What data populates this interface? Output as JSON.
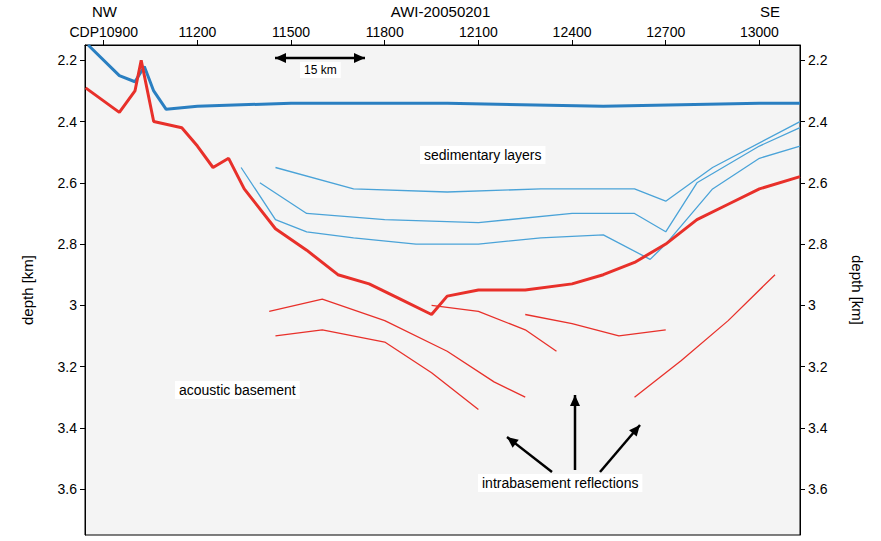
{
  "chart_data": {
    "type": "line",
    "title": "AWI-20050201",
    "left_label": "NW",
    "right_label": "SE",
    "scale_bar": "15 km",
    "ylabel": "depth [km]",
    "y2label": "depth [km]",
    "annotations": [
      "sedimentary layers",
      "acoustic basement",
      "intrabasement reflections"
    ],
    "xlim": [
      10840,
      13130
    ],
    "xticks": [
      {
        "value": 10900,
        "label": "CDP10900"
      },
      11200,
      11500,
      11800,
      12100,
      12400,
      12700,
      13000
    ],
    "ylim": [
      2.15,
      3.75
    ],
    "yticks": [
      2.2,
      2.4,
      2.6,
      2.8,
      3.0,
      3.2,
      3.4,
      3.6
    ],
    "y2lim": [
      2.15,
      3.75
    ],
    "y2ticks": [
      2.2,
      2.4,
      2.6,
      2.8,
      3.0,
      3.2,
      3.4,
      3.6
    ],
    "series": [
      {
        "color": "#2a7fc1",
        "line_style": "thick",
        "x": [
          10850,
          10950,
          11000,
          11030,
          11060,
          11100,
          11200,
          11500,
          12000,
          12500,
          13000,
          13130
        ],
        "values": [
          2.15,
          2.25,
          2.27,
          2.22,
          2.3,
          2.36,
          2.35,
          2.34,
          2.34,
          2.35,
          2.34,
          2.34
        ]
      },
      {
        "color": "#4aa3d8",
        "line_style": "thin",
        "x": [
          11450,
          11700,
          12000,
          12300,
          12600,
          12700,
          12850,
          13130
        ],
        "values": [
          2.55,
          2.62,
          2.63,
          2.62,
          2.62,
          2.66,
          2.55,
          2.4
        ]
      },
      {
        "color": "#4aa3d8",
        "line_style": "thin",
        "x": [
          11400,
          11550,
          11800,
          12100,
          12400,
          12600,
          12700,
          12800,
          13000,
          13130
        ],
        "values": [
          2.6,
          2.7,
          2.72,
          2.73,
          2.7,
          2.7,
          2.76,
          2.6,
          2.48,
          2.42
        ]
      },
      {
        "color": "#4aa3d8",
        "line_style": "thin",
        "x": [
          11340,
          11450,
          11550,
          11700,
          11900,
          12100,
          12300,
          12500,
          12650,
          12700,
          12850,
          13000,
          13130
        ],
        "values": [
          2.55,
          2.72,
          2.76,
          2.78,
          2.8,
          2.8,
          2.78,
          2.77,
          2.85,
          2.8,
          2.62,
          2.52,
          2.48
        ]
      },
      {
        "color": "#e8302a",
        "line_style": "thick",
        "x": [
          10842,
          10950,
          11000,
          11020,
          11060,
          11150,
          11200,
          11250,
          11300,
          11350,
          11450,
          11550,
          11650,
          11750,
          11850,
          11950,
          12000,
          12100,
          12250,
          12400,
          12500,
          12600,
          12700,
          12800,
          12900,
          13000,
          13130
        ],
        "values": [
          2.29,
          2.37,
          2.3,
          2.2,
          2.4,
          2.42,
          2.48,
          2.55,
          2.52,
          2.62,
          2.75,
          2.82,
          2.9,
          2.93,
          2.98,
          3.03,
          2.97,
          2.95,
          2.95,
          2.93,
          2.9,
          2.86,
          2.8,
          2.72,
          2.67,
          2.62,
          2.58
        ]
      },
      {
        "color": "#e8302a",
        "line_style": "thin",
        "x": [
          11430,
          11600,
          11800,
          12000,
          12150,
          12250
        ],
        "values": [
          3.02,
          2.98,
          3.05,
          3.15,
          3.25,
          3.3
        ]
      },
      {
        "color": "#e8302a",
        "line_style": "thin",
        "x": [
          11450,
          11600,
          11800,
          11950,
          12100
        ],
        "values": [
          3.1,
          3.08,
          3.12,
          3.22,
          3.34
        ]
      },
      {
        "color": "#e8302a",
        "line_style": "thin",
        "x": [
          11950,
          12100,
          12250,
          12350
        ],
        "values": [
          3.0,
          3.02,
          3.08,
          3.15
        ]
      },
      {
        "color": "#e8302a",
        "line_style": "thin",
        "x": [
          12250,
          12400,
          12550,
          12700
        ],
        "values": [
          3.03,
          3.06,
          3.1,
          3.08
        ]
      },
      {
        "color": "#e8302a",
        "line_style": "thin",
        "x": [
          12600,
          12750,
          12900,
          13050
        ],
        "values": [
          3.3,
          3.18,
          3.05,
          2.9
        ]
      }
    ]
  }
}
